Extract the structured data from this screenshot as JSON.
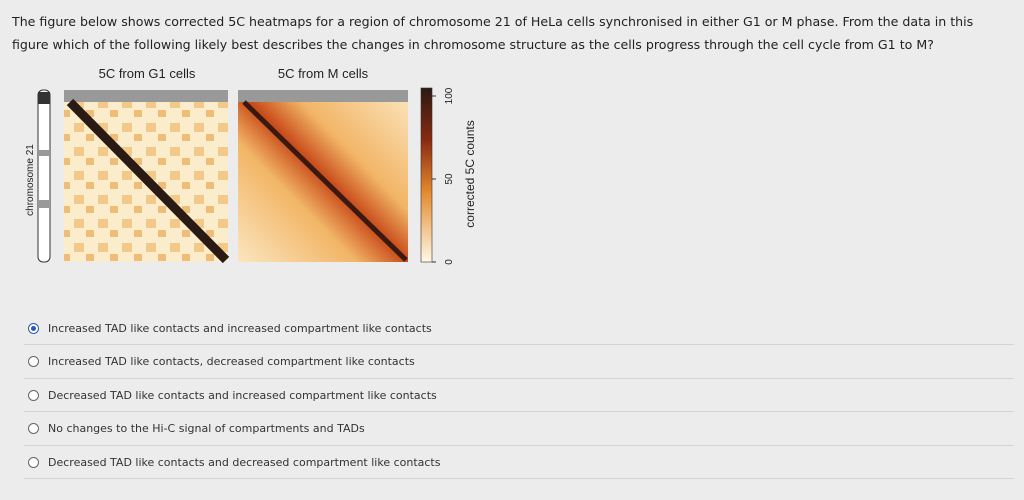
{
  "question": "The figure below shows corrected 5C heatmaps for a region of chromosome 21 of HeLa cells synchronised in either G1 or M phase. From the data in this figure which of the following likely best describes the changes in chromosome structure as the cells progress through the cell cycle from G1 to M?",
  "figure": {
    "titles": [
      "5C from G1 cells",
      "5C from M cells"
    ],
    "y_label": "chromosome 21",
    "colorbar": {
      "ticks": [
        0,
        50,
        100
      ],
      "label": "corrected 5C counts"
    }
  },
  "options": [
    "Increased TAD like contacts and increased compartment like contacts",
    "Increased TAD like contacts, decreased compartment like contacts",
    "Decreased TAD like contacts and increased compartment like contacts",
    "No changes to the Hi-C signal of compartments and TADs",
    "Decreased TAD like contacts and decreased compartment like contacts"
  ],
  "selected": 0
}
